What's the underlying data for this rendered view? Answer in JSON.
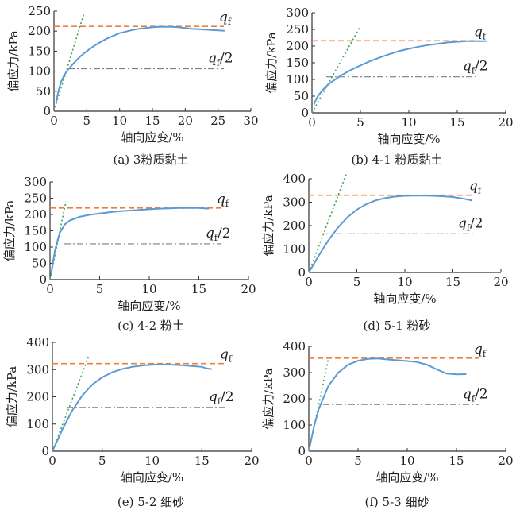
{
  "colors": {
    "curve": "#5b9bd5",
    "qf_line": "#f07f3c",
    "half_line": "#7f7f7f",
    "tangent": "#3aa655",
    "axis": "#333333"
  },
  "chart_data": [
    {
      "type": "line",
      "panel": "a",
      "caption": "(a) 3粉质黏土",
      "xlabel": "轴向应变/%",
      "ylabel": "偏应力/kPa",
      "xlim": [
        0,
        30
      ],
      "ylim": [
        0,
        250
      ],
      "xticks": [
        0,
        5,
        10,
        15,
        20,
        25,
        30
      ],
      "yticks": [
        0,
        50,
        100,
        150,
        200,
        250
      ],
      "qf": 212,
      "qf_half": 106,
      "qf_label": "qf",
      "qf_half_label": "qf/2",
      "tangent_end": [
        4.6,
        246
      ],
      "series": [
        {
          "x": [
            0.3,
            0.6,
            1,
            1.5,
            2,
            3,
            4,
            5,
            6,
            7,
            8,
            9,
            10,
            11,
            12,
            13,
            14,
            15,
            16,
            17,
            18,
            19,
            20,
            21,
            22,
            23,
            24,
            25,
            26
          ],
          "y": [
            20,
            45,
            70,
            88,
            101,
            120,
            137,
            150,
            162,
            172,
            181,
            188,
            195,
            199,
            203,
            206,
            208,
            210,
            211,
            211,
            211,
            210,
            208,
            206,
            205,
            204,
            203,
            202,
            201
          ]
        }
      ]
    },
    {
      "type": "line",
      "panel": "b",
      "caption": "(b) 4-1 粉质黏土",
      "xlabel": "轴向应变/%",
      "ylabel": "偏应力/kPa",
      "xlim": [
        0,
        20
      ],
      "ylim": [
        0,
        300
      ],
      "xticks": [
        0,
        5,
        10,
        15,
        20
      ],
      "yticks": [
        0,
        50,
        100,
        150,
        200,
        250,
        300
      ],
      "qf": 216,
      "qf_half": 108,
      "qf_label": "qf",
      "qf_half_label": "qf/2",
      "tangent_end": [
        5,
        260
      ],
      "series": [
        {
          "x": [
            0.2,
            0.5,
            1,
            1.5,
            2,
            3,
            4,
            5,
            6,
            7,
            8,
            9,
            10,
            11,
            12,
            13,
            14,
            15,
            16,
            17,
            18
          ],
          "y": [
            25,
            45,
            65,
            80,
            92,
            112,
            128,
            142,
            155,
            166,
            176,
            185,
            192,
            198,
            203,
            207,
            211,
            213,
            215,
            215,
            215
          ]
        }
      ]
    },
    {
      "type": "line",
      "panel": "c",
      "caption": "(c) 4-2 粉土",
      "xlabel": "轴向应变/%",
      "ylabel": "偏应力/kPa",
      "xlim": [
        0,
        20
      ],
      "ylim": [
        0,
        300
      ],
      "xticks": [
        0,
        5,
        10,
        15,
        20
      ],
      "yticks": [
        0,
        50,
        100,
        150,
        200,
        250,
        300
      ],
      "qf": 220,
      "qf_half": 110,
      "qf_label": "qf",
      "qf_half_label": "qf/2",
      "tangent_end": [
        1.6,
        240
      ],
      "series": [
        {
          "x": [
            0.1,
            0.3,
            0.5,
            0.8,
            1,
            1.5,
            2,
            3,
            4,
            5,
            6,
            7,
            8,
            9,
            10,
            11,
            12,
            13,
            14,
            15,
            16
          ],
          "y": [
            15,
            55,
            90,
            125,
            145,
            170,
            182,
            193,
            199,
            203,
            207,
            210,
            212,
            214,
            216,
            218,
            219,
            220,
            220,
            220,
            218
          ]
        }
      ]
    },
    {
      "type": "line",
      "panel": "d",
      "caption": "(d) 5-1 粉砂",
      "xlabel": "轴向应变/%",
      "ylabel": "偏应力/kPa",
      "xlim": [
        0,
        20
      ],
      "ylim": [
        0,
        400
      ],
      "xticks": [
        0,
        5,
        10,
        15,
        20
      ],
      "yticks": [
        0,
        100,
        200,
        300,
        400
      ],
      "qf": 330,
      "qf_half": 165,
      "qf_label": "qf",
      "qf_half_label": "qf/2",
      "tangent_end": [
        3.9,
        420
      ],
      "series": [
        {
          "x": [
            0,
            0.5,
            1,
            2,
            3,
            4,
            5,
            6,
            7,
            8,
            9,
            10,
            11,
            12,
            13,
            14,
            15,
            16,
            17
          ],
          "y": [
            0,
            35,
            70,
            135,
            190,
            235,
            268,
            292,
            308,
            318,
            324,
            327,
            328,
            328,
            327,
            325,
            322,
            316,
            307
          ]
        }
      ]
    },
    {
      "type": "line",
      "panel": "e",
      "caption": "(e) 5-2 细砂",
      "xlabel": "轴向应变/%",
      "ylabel": "偏应力/kPa",
      "xlim": [
        0,
        20
      ],
      "ylim": [
        0,
        400
      ],
      "xticks": [
        0,
        5,
        10,
        15,
        20
      ],
      "yticks": [
        0,
        100,
        200,
        300,
        400
      ],
      "qf": 322,
      "qf_half": 161,
      "qf_label": "qf",
      "qf_half_label": "qf/2",
      "tangent_end": [
        3.6,
        345
      ],
      "series": [
        {
          "x": [
            0,
            0.5,
            1,
            2,
            3,
            4,
            5,
            6,
            7,
            8,
            9,
            10,
            11,
            12,
            13,
            14,
            15,
            15.5,
            16
          ],
          "y": [
            0,
            40,
            80,
            150,
            205,
            245,
            272,
            290,
            302,
            310,
            315,
            318,
            319,
            318,
            316,
            313,
            310,
            304,
            302
          ]
        }
      ]
    },
    {
      "type": "line",
      "panel": "f",
      "caption": "(f) 5-3 细砂",
      "xlabel": "轴向应变/%",
      "ylabel": "偏应力/kPa",
      "xlim": [
        0,
        20
      ],
      "ylim": [
        0,
        400
      ],
      "xticks": [
        0,
        5,
        10,
        15,
        20
      ],
      "yticks": [
        0,
        100,
        200,
        300,
        400
      ],
      "qf": 355,
      "qf_half": 178,
      "qf_label": "qf",
      "qf_half_label": "qf/2",
      "tangent_end": [
        2,
        355
      ],
      "series": [
        {
          "x": [
            0,
            0.5,
            1,
            2,
            3,
            4,
            5,
            6,
            7,
            8,
            9,
            10,
            11,
            12,
            13,
            14,
            15,
            16
          ],
          "y": [
            0,
            90,
            160,
            250,
            300,
            330,
            345,
            352,
            354,
            350,
            347,
            344,
            340,
            330,
            312,
            296,
            293,
            294
          ]
        }
      ]
    }
  ]
}
